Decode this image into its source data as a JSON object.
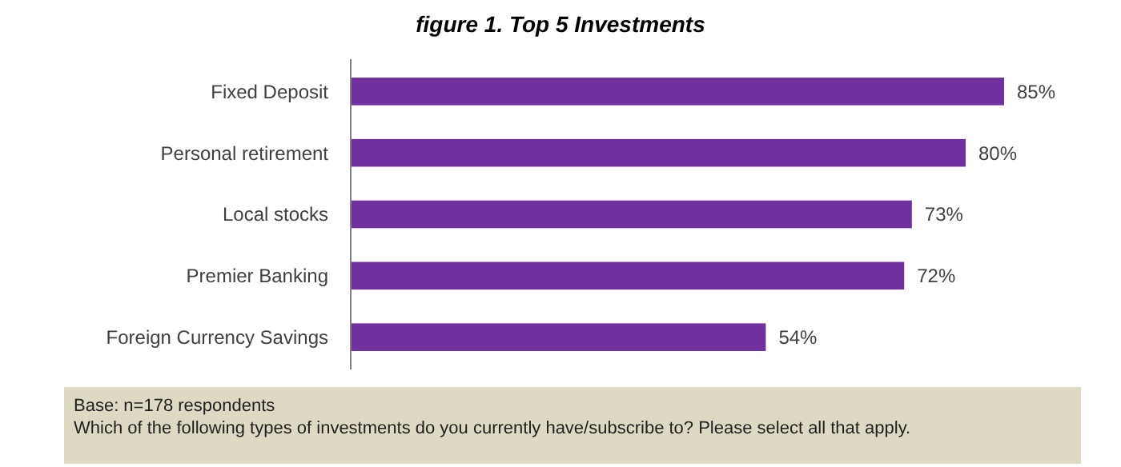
{
  "chart_data": {
    "type": "bar",
    "orientation": "horizontal",
    "title": "figure 1. Top 5 Investments",
    "categories": [
      "Fixed Deposit",
      "Personal retirement",
      "Local stocks",
      "Premier Banking",
      "Foreign Currency Savings"
    ],
    "values": [
      85,
      80,
      73,
      72,
      54
    ],
    "color": "#7030a0",
    "value_labels": [
      "85%",
      "80%",
      "73%",
      "72%",
      "54%"
    ],
    "annotations": [
      "Base: n=178 respondents",
      "Which of the following types of investments do you currently have/subscribe to?  Please select all that apply."
    ]
  }
}
